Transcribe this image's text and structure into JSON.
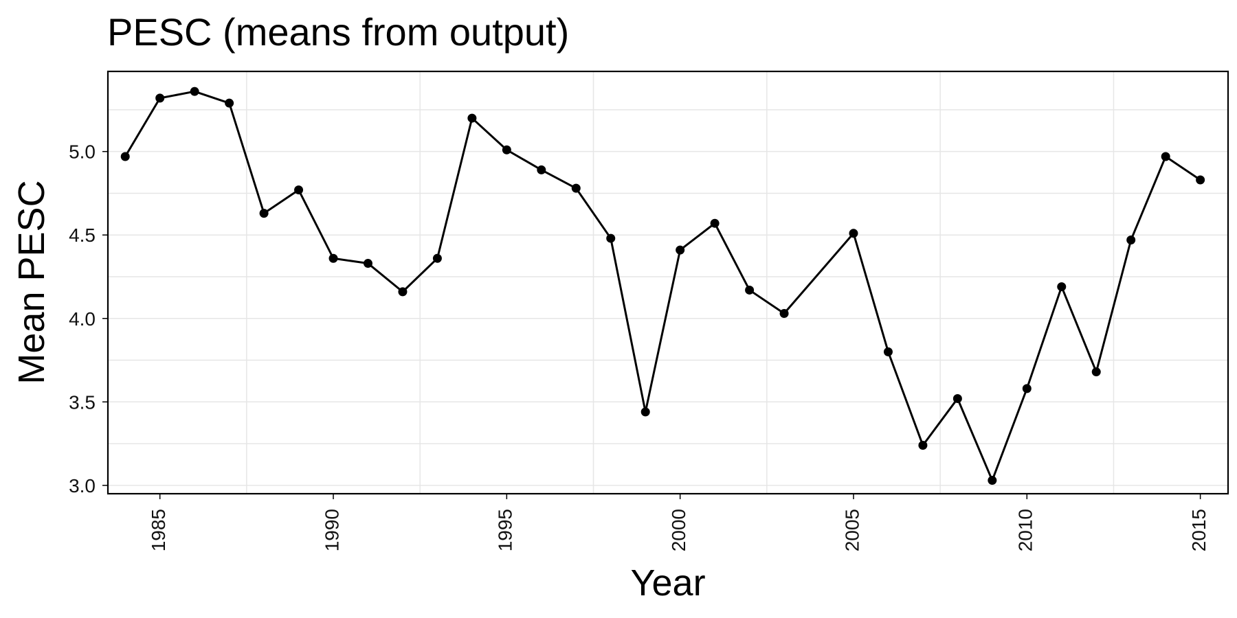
{
  "chart_data": {
    "type": "line",
    "title": "PESC (means from output)",
    "xlabel": "Year",
    "ylabel": "Mean PESC",
    "xlim": [
      1983.5,
      1986.5
    ],
    "ylim": [
      2.95,
      5.48
    ],
    "x_ticks": [
      1985,
      1990,
      1995,
      2000,
      2005,
      2010,
      2015
    ],
    "y_ticks": [
      3.0,
      3.5,
      4.0,
      4.5,
      5.0
    ],
    "y_tick_labels": [
      "3.0",
      "3.5",
      "4.0",
      "4.5",
      "5.0"
    ],
    "grid": true,
    "legend": "none",
    "points": [
      {
        "x": 1984,
        "y": 4.97
      },
      {
        "x": 1985,
        "y": 5.32
      },
      {
        "x": 1986,
        "y": 5.36
      },
      {
        "x": 1987,
        "y": 5.29
      },
      {
        "x": 1988,
        "y": 4.63
      },
      {
        "x": 1989,
        "y": 4.77
      },
      {
        "x": 1990,
        "y": 4.36
      },
      {
        "x": 1991,
        "y": 4.33
      },
      {
        "x": 1992,
        "y": 4.16
      },
      {
        "x": 1993,
        "y": 4.36
      },
      {
        "x": 1994,
        "y": 5.2
      },
      {
        "x": 1995,
        "y": 5.01
      },
      {
        "x": 1996,
        "y": 4.89
      },
      {
        "x": 1997,
        "y": 4.78
      },
      {
        "x": 1998,
        "y": 4.48
      },
      {
        "x": 1999,
        "y": 3.44
      },
      {
        "x": 2000,
        "y": 4.41
      },
      {
        "x": 2001,
        "y": 4.57
      },
      {
        "x": 2002,
        "y": 4.17
      },
      {
        "x": 2003,
        "y": 4.03
      },
      {
        "x": 2005,
        "y": 4.51
      },
      {
        "x": 2006,
        "y": 3.8
      },
      {
        "x": 2007,
        "y": 3.24
      },
      {
        "x": 2008,
        "y": 3.52
      },
      {
        "x": 2009,
        "y": 3.03
      },
      {
        "x": 2010,
        "y": 3.58
      },
      {
        "x": 2011,
        "y": 4.19
      },
      {
        "x": 2012,
        "y": 3.68
      },
      {
        "x": 2013,
        "y": 4.47
      },
      {
        "x": 2014,
        "y": 4.97
      },
      {
        "x": 2015,
        "y": 4.83
      }
    ],
    "colors": {
      "line": "#000000",
      "points": "#000000",
      "grid": "#e6e6e6",
      "panel_border": "#000000",
      "background": "#ffffff"
    }
  }
}
